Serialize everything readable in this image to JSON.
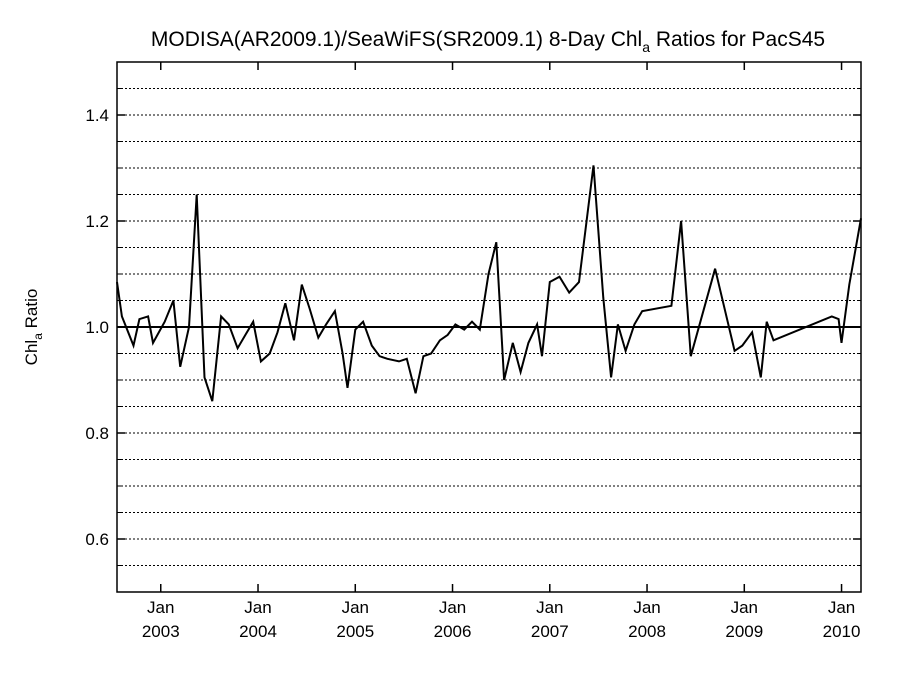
{
  "chart_data": {
    "type": "line",
    "title": "MODISA(AR2009.1)/SeaWiFS(SR2009.1) 8-Day Chl",
    "title_subscript": "a",
    "title_suffix": " Ratios for PacS45",
    "ylabel": "Chl",
    "ylabel_subscript": "a",
    "ylabel_suffix": " Ratio",
    "ylim": [
      0.5,
      1.5
    ],
    "xlim": [
      2002.55,
      2010.2
    ],
    "y_ticks": [
      {
        "value": 0.6,
        "label": "0.6"
      },
      {
        "value": 0.8,
        "label": "0.8"
      },
      {
        "value": 1.0,
        "label": "1.0"
      },
      {
        "value": 1.2,
        "label": "1.2"
      },
      {
        "value": 1.4,
        "label": "1.4"
      }
    ],
    "y_minor_ticks": [
      0.55,
      0.65,
      0.7,
      0.75,
      0.85,
      0.9,
      0.95,
      1.05,
      1.1,
      1.15,
      1.25,
      1.3,
      1.35,
      1.45
    ],
    "x_ticks": [
      {
        "value": 2003.0,
        "month": "Jan",
        "year": "2003"
      },
      {
        "value": 2004.0,
        "month": "Jan",
        "year": "2004"
      },
      {
        "value": 2005.0,
        "month": "Jan",
        "year": "2005"
      },
      {
        "value": 2006.0,
        "month": "Jan",
        "year": "2006"
      },
      {
        "value": 2007.0,
        "month": "Jan",
        "year": "2007"
      },
      {
        "value": 2008.0,
        "month": "Jan",
        "year": "2008"
      },
      {
        "value": 2009.0,
        "month": "Jan",
        "year": "2009"
      },
      {
        "value": 2010.0,
        "month": "Jan",
        "year": "2010"
      }
    ],
    "grid": "dotted horizontal",
    "reference_line": 1.0,
    "series": [
      {
        "color": "#000000",
        "points": [
          [
            2002.55,
            1.085
          ],
          [
            2002.6,
            1.02
          ],
          [
            2002.72,
            0.965
          ],
          [
            2002.78,
            1.015
          ],
          [
            2002.87,
            1.02
          ],
          [
            2002.92,
            0.97
          ],
          [
            2003.04,
            1.01
          ],
          [
            2003.13,
            1.05
          ],
          [
            2003.2,
            0.925
          ],
          [
            2003.29,
            1.0
          ],
          [
            2003.37,
            1.25
          ],
          [
            2003.45,
            0.905
          ],
          [
            2003.53,
            0.86
          ],
          [
            2003.62,
            1.02
          ],
          [
            2003.7,
            1.005
          ],
          [
            2003.79,
            0.96
          ],
          [
            2003.87,
            0.985
          ],
          [
            2003.95,
            1.01
          ],
          [
            2004.03,
            0.935
          ],
          [
            2004.12,
            0.95
          ],
          [
            2004.2,
            0.99
          ],
          [
            2004.28,
            1.045
          ],
          [
            2004.37,
            0.975
          ],
          [
            2004.45,
            1.08
          ],
          [
            2004.53,
            1.035
          ],
          [
            2004.62,
            0.98
          ],
          [
            2004.7,
            1.005
          ],
          [
            2004.79,
            1.03
          ],
          [
            2004.87,
            0.95
          ],
          [
            2004.92,
            0.885
          ],
          [
            2005.0,
            0.995
          ],
          [
            2005.08,
            1.01
          ],
          [
            2005.17,
            0.965
          ],
          [
            2005.25,
            0.945
          ],
          [
            2005.33,
            0.94
          ],
          [
            2005.45,
            0.935
          ],
          [
            2005.53,
            0.94
          ],
          [
            2005.62,
            0.875
          ],
          [
            2005.7,
            0.945
          ],
          [
            2005.78,
            0.95
          ],
          [
            2005.87,
            0.975
          ],
          [
            2005.95,
            0.985
          ],
          [
            2006.03,
            1.005
          ],
          [
            2006.12,
            0.995
          ],
          [
            2006.2,
            1.01
          ],
          [
            2006.28,
            0.995
          ],
          [
            2006.37,
            1.1
          ],
          [
            2006.45,
            1.16
          ],
          [
            2006.53,
            0.9
          ],
          [
            2006.62,
            0.97
          ],
          [
            2006.7,
            0.915
          ],
          [
            2006.78,
            0.97
          ],
          [
            2006.87,
            1.005
          ],
          [
            2006.92,
            0.945
          ],
          [
            2007.0,
            1.085
          ],
          [
            2007.1,
            1.095
          ],
          [
            2007.2,
            1.065
          ],
          [
            2007.3,
            1.085
          ],
          [
            2007.45,
            1.305
          ],
          [
            2007.55,
            1.055
          ],
          [
            2007.63,
            0.905
          ],
          [
            2007.7,
            1.005
          ],
          [
            2007.78,
            0.955
          ],
          [
            2007.87,
            1.005
          ],
          [
            2007.95,
            1.03
          ],
          [
            2008.25,
            1.04
          ],
          [
            2008.35,
            1.2
          ],
          [
            2008.45,
            0.945
          ],
          [
            2008.7,
            1.11
          ],
          [
            2008.9,
            0.955
          ],
          [
            2008.98,
            0.965
          ],
          [
            2009.08,
            0.99
          ],
          [
            2009.17,
            0.905
          ],
          [
            2009.23,
            1.01
          ],
          [
            2009.3,
            0.975
          ],
          [
            2009.9,
            1.02
          ],
          [
            2009.97,
            1.015
          ],
          [
            2010.0,
            0.97
          ],
          [
            2010.08,
            1.08
          ],
          [
            2010.2,
            1.205
          ]
        ]
      }
    ]
  }
}
